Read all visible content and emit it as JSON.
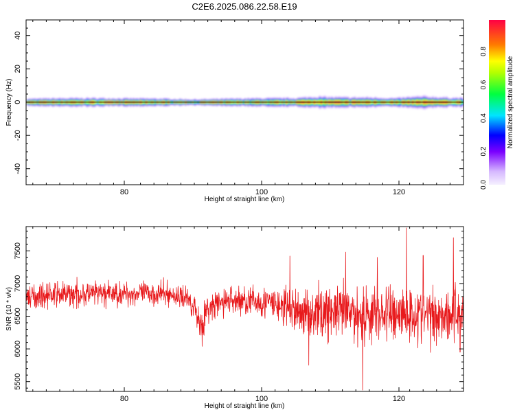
{
  "title": "C2E6.2025.086.22.58.E19",
  "colors": {
    "snr_line": "#e8191c",
    "axis": "#000000",
    "background": "#ffffff"
  },
  "chart_data": [
    {
      "type": "heatmap",
      "name": "spectrogram",
      "xlabel": "Height of straight line (km)",
      "ylabel": "Frequency (Hz)",
      "xlim": [
        65,
        130
      ],
      "ylim": [
        -50,
        50
      ],
      "x_ticks": [
        80,
        100,
        120
      ],
      "y_ticks": [
        -40,
        -20,
        0,
        20,
        40
      ],
      "colorbar": {
        "label": "Normalized spectral amplitude",
        "range": [
          0,
          1
        ],
        "ticks": [
          "0.0",
          "0.2",
          "0.4",
          "0.6",
          "0.8"
        ],
        "tick_values": [
          0.0,
          0.2,
          0.4,
          0.6,
          0.8
        ]
      },
      "band": {
        "center_hz": 0,
        "peak_amplitude": 1.0,
        "height_profile": [
          [
            66,
            0.55,
            2.2
          ],
          [
            70,
            0.6,
            2.5
          ],
          [
            75,
            0.55,
            2.6
          ],
          [
            80,
            0.6,
            2.4
          ],
          [
            85,
            0.55,
            2.3
          ],
          [
            90,
            0.5,
            1.8
          ],
          [
            95,
            0.55,
            2.2
          ],
          [
            100,
            0.55,
            2.5
          ],
          [
            105,
            0.6,
            2.6
          ],
          [
            108,
            0.7,
            3.5
          ],
          [
            110,
            0.65,
            3.2
          ],
          [
            113,
            0.6,
            3.0
          ],
          [
            116,
            0.6,
            3.0
          ],
          [
            120,
            0.55,
            2.5
          ],
          [
            122,
            0.65,
            3.2
          ],
          [
            124,
            0.7,
            3.6
          ],
          [
            127,
            0.6,
            3.0
          ],
          [
            130,
            0.55,
            2.6
          ]
        ]
      }
    },
    {
      "type": "line",
      "name": "snr",
      "xlabel": "Height of straight line (km)",
      "ylabel": "SNR (10 * v/v)",
      "xlim": [
        65,
        130
      ],
      "ylim": [
        5350,
        7870
      ],
      "x_ticks": [
        80,
        100,
        120
      ],
      "y_ticks": [
        5500,
        6000,
        6500,
        7000,
        7500
      ],
      "envelope": [
        [
          65,
          6800,
          150
        ],
        [
          70,
          6830,
          180
        ],
        [
          75,
          6840,
          180
        ],
        [
          80,
          6840,
          170
        ],
        [
          85,
          6850,
          170
        ],
        [
          89,
          6780,
          150
        ],
        [
          90,
          6650,
          220
        ],
        [
          91,
          6350,
          250
        ],
        [
          92,
          6600,
          220
        ],
        [
          95,
          6750,
          200
        ],
        [
          100,
          6720,
          230
        ],
        [
          103,
          6650,
          280
        ],
        [
          106,
          6550,
          330
        ],
        [
          110,
          6560,
          380
        ],
        [
          115,
          6520,
          420
        ],
        [
          120,
          6550,
          420
        ],
        [
          125,
          6520,
          400
        ],
        [
          130,
          6550,
          400
        ]
      ],
      "extremes": [
        [
          104.2,
          7420
        ],
        [
          107.0,
          5750
        ],
        [
          112.5,
          7480
        ],
        [
          115.0,
          5370
        ],
        [
          117.2,
          7400
        ],
        [
          121.5,
          7850
        ],
        [
          124.0,
          7430
        ],
        [
          128.5,
          7700
        ],
        [
          129.5,
          5950
        ]
      ]
    }
  ]
}
